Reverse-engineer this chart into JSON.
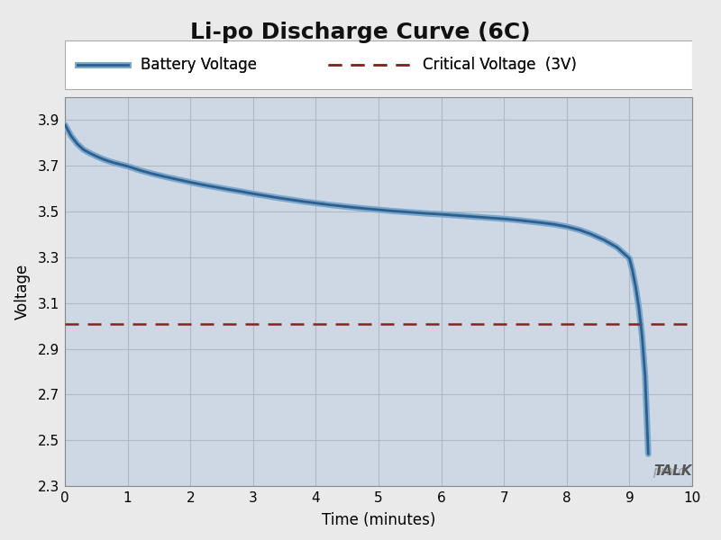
{
  "title": "Li-po Discharge Curve (6C)",
  "xlabel": "Time (minutes)",
  "ylabel": "Voltage",
  "xlim": [
    0,
    10
  ],
  "ylim": [
    2.3,
    4.0
  ],
  "xticks": [
    0,
    1,
    2,
    3,
    4,
    5,
    6,
    7,
    8,
    9,
    10
  ],
  "yticks": [
    2.3,
    2.5,
    2.7,
    2.9,
    3.1,
    3.3,
    3.5,
    3.7,
    3.9
  ],
  "critical_voltage": 3.01,
  "battery_color": "#2e5e8e",
  "battery_color_light": "#7aa8cc",
  "critical_color": "#8b2020",
  "plot_bg_color": "#ced8e5",
  "figure_bg_color": "#eaeaea",
  "title_fontsize": 18,
  "label_fontsize": 12,
  "tick_fontsize": 11,
  "legend_fontsize": 12,
  "battery_x": [
    0,
    0.05,
    0.1,
    0.2,
    0.3,
    0.4,
    0.5,
    0.6,
    0.7,
    0.8,
    0.9,
    1.0,
    1.2,
    1.4,
    1.6,
    1.8,
    2.0,
    2.2,
    2.4,
    2.6,
    2.8,
    3.0,
    3.2,
    3.4,
    3.6,
    3.8,
    4.0,
    4.2,
    4.4,
    4.6,
    4.8,
    5.0,
    5.2,
    5.4,
    5.6,
    5.8,
    6.0,
    6.2,
    6.4,
    6.6,
    6.8,
    7.0,
    7.2,
    7.4,
    7.6,
    7.8,
    8.0,
    8.2,
    8.4,
    8.6,
    8.8,
    9.0,
    9.05,
    9.1,
    9.15,
    9.2,
    9.25,
    9.3
  ],
  "battery_y": [
    3.88,
    3.855,
    3.83,
    3.795,
    3.77,
    3.755,
    3.742,
    3.73,
    3.72,
    3.712,
    3.705,
    3.698,
    3.68,
    3.665,
    3.652,
    3.64,
    3.628,
    3.617,
    3.607,
    3.597,
    3.588,
    3.578,
    3.569,
    3.56,
    3.552,
    3.544,
    3.537,
    3.53,
    3.524,
    3.518,
    3.513,
    3.508,
    3.503,
    3.499,
    3.495,
    3.491,
    3.488,
    3.484,
    3.48,
    3.476,
    3.472,
    3.468,
    3.463,
    3.457,
    3.451,
    3.444,
    3.434,
    3.42,
    3.4,
    3.375,
    3.344,
    3.295,
    3.24,
    3.17,
    3.08,
    2.96,
    2.78,
    2.44
  ]
}
